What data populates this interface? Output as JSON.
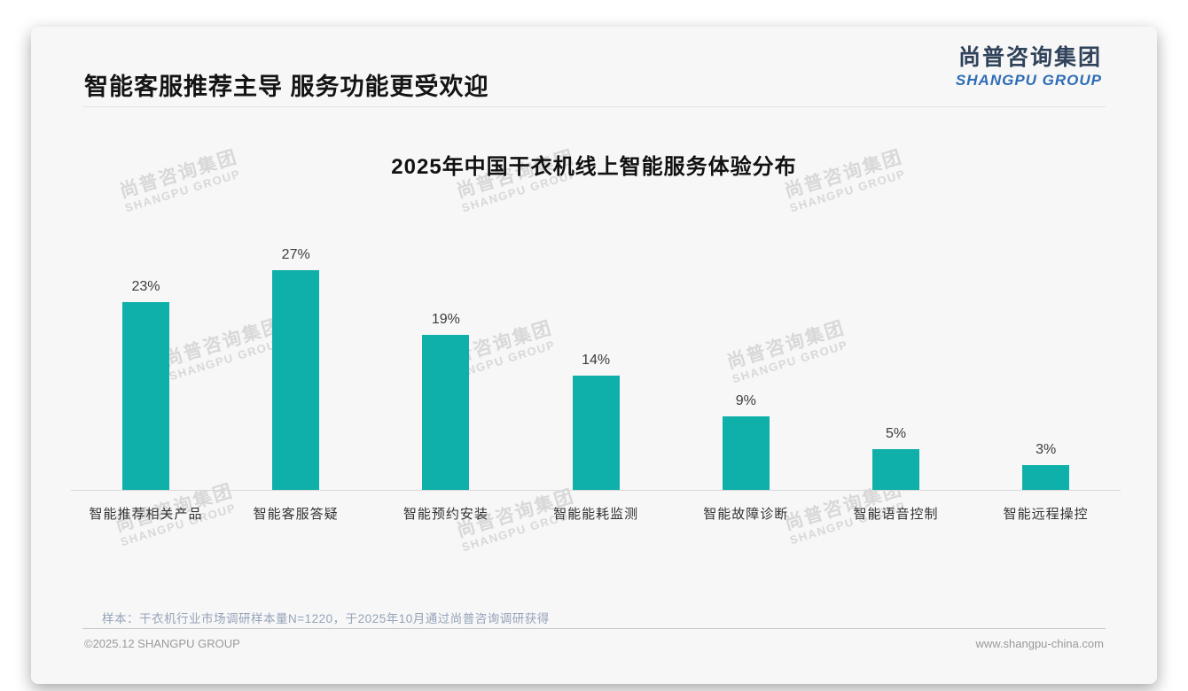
{
  "page": {
    "title": "智能客服推荐主导 服务功能更受欢迎",
    "logo": {
      "cn": "尚普咨询集团",
      "en": "SHANGPU GROUP"
    },
    "watermark": {
      "line1": "尚普咨询集团",
      "line2": "SHANGPU GROUP"
    },
    "note": "样本：干衣机行业市场调研样本量N=1220，于2025年10月通过尚普咨询调研获得",
    "footer": {
      "left": "©2025.12 SHANGPU GROUP",
      "right": "www.shangpu-china.com"
    }
  },
  "colors": {
    "bar": "#0fb0aa",
    "logo_navy": "#31435b",
    "logo_blue": "#2f6db5",
    "note_text": "#95a3b8"
  },
  "chart_data": {
    "type": "bar",
    "title": "2025年中国干衣机线上智能服务体验分布",
    "categories": [
      "智能推荐相关产品",
      "智能客服答疑",
      "智能预约安装",
      "智能能耗监测",
      "智能故障诊断",
      "智能语音控制",
      "智能远程操控"
    ],
    "values": [
      23,
      27,
      19,
      14,
      9,
      5,
      3
    ],
    "unit": "%",
    "value_labels": [
      "23%",
      "27%",
      "19%",
      "14%",
      "9%",
      "5%",
      "3%"
    ],
    "ylim": [
      0,
      30
    ],
    "grid": false,
    "legend": "none",
    "bar_color": "#0fb0aa"
  }
}
